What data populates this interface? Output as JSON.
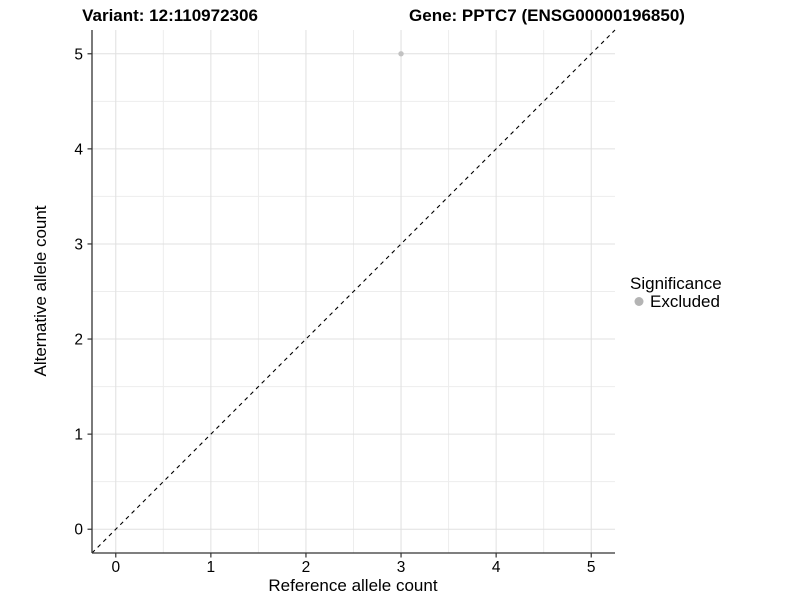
{
  "figure": {
    "title_left": "Variant: 12:110972306",
    "title_right": "Gene: PPTC7 (ENSG00000196850)"
  },
  "chart_data": {
    "type": "scatter",
    "title": "Variant: 12:110972306   Gene: PPTC7 (ENSG00000196850)",
    "xlabel": "Reference allele count",
    "ylabel": "Alternative allele count",
    "xlim": [
      -0.25,
      5.25
    ],
    "ylim": [
      -0.25,
      5.25
    ],
    "x_ticks": [
      0,
      1,
      2,
      3,
      4,
      5
    ],
    "y_ticks": [
      0,
      1,
      2,
      3,
      4,
      5
    ],
    "x_minor_ticks": [
      0.5,
      1.5,
      2.5,
      3.5,
      4.5
    ],
    "y_minor_ticks": [
      0.5,
      1.5,
      2.5,
      3.5,
      4.5
    ],
    "grid": true,
    "legend_position": "right",
    "series": [
      {
        "name": "Excluded",
        "marker": "circle",
        "color": "#c2c2c2",
        "points": [
          {
            "x": 3,
            "y": 5
          }
        ]
      }
    ],
    "reference_line": {
      "kind": "identity",
      "style": "dashed",
      "color": "#000000",
      "from": {
        "x": -0.25,
        "y": -0.25
      },
      "to": {
        "x": 5.25,
        "y": 5.25
      }
    },
    "legend": {
      "title": "Significance",
      "items": [
        {
          "label": "Excluded",
          "marker": "circle",
          "color": "#b4b4b4"
        }
      ]
    }
  },
  "colors": {
    "background": "#ffffff",
    "grid_major": "#e0e0e0",
    "grid_minor": "#ededed",
    "axis_line": "#333333",
    "tick_mark": "#333333",
    "point_fill": "#c2c2c2",
    "legend_point_fill": "#b4b4b4",
    "text": "#000000"
  }
}
